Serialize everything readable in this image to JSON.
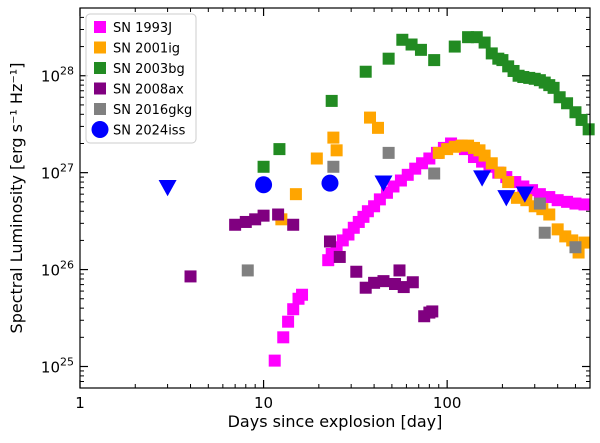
{
  "chart_data": {
    "type": "scatter",
    "title": "",
    "xlabel": "Days since explosion [day]",
    "ylabel": "Spectral Luminosity [erg s⁻¹ Hz⁻¹]",
    "xscale": "log",
    "yscale": "log",
    "xlim": [
      1,
      600
    ],
    "ylim": [
      6e+24,
      5e+28
    ],
    "x_ticks": [
      {
        "value": 1,
        "label": "1"
      },
      {
        "value": 10,
        "label": "10"
      },
      {
        "value": 100,
        "label": "100"
      }
    ],
    "y_ticks": [
      {
        "value": 1e+25,
        "label": "10^25"
      },
      {
        "value": 1e+26,
        "label": "10^26"
      },
      {
        "value": 1e+27,
        "label": "10^27"
      },
      {
        "value": 1e+28,
        "label": "10^28"
      }
    ],
    "legend_position": "top-left",
    "series": [
      {
        "name": "SN 1993J",
        "color": "#ff00ff",
        "marker": "square",
        "points": [
          [
            11.5,
            1.15e+25
          ],
          [
            12.8,
            2e+25
          ],
          [
            13.6,
            2.9e+25
          ],
          [
            14.5,
            3.9e+25
          ],
          [
            15.5,
            5e+25
          ],
          [
            16.2,
            5.5e+25
          ],
          [
            22.5,
            1.25e+26
          ],
          [
            23.5,
            1.45e+26
          ],
          [
            25,
            1.7e+26
          ],
          [
            27,
            2e+26
          ],
          [
            29,
            2.3e+26
          ],
          [
            31,
            2.7e+26
          ],
          [
            33,
            3.1e+26
          ],
          [
            35,
            3.5e+26
          ],
          [
            37,
            4e+26
          ],
          [
            40,
            4.5e+26
          ],
          [
            43,
            5.3e+26
          ],
          [
            47,
            6.2e+26
          ],
          [
            51,
            7.2e+26
          ],
          [
            56,
            8.3e+26
          ],
          [
            61,
            9.5e+26
          ],
          [
            67,
            1.1e+27
          ],
          [
            73,
            1.25e+27
          ],
          [
            80,
            1.4e+27
          ],
          [
            88,
            1.6e+27
          ],
          [
            96,
            1.8e+27
          ],
          [
            105,
            2e+27
          ],
          [
            115,
            1.9e+27
          ],
          [
            125,
            1.75e+27
          ],
          [
            140,
            1.45e+27
          ],
          [
            155,
            1.3e+27
          ],
          [
            170,
            1.15e+27
          ],
          [
            190,
            1e+27
          ],
          [
            210,
            9e+26
          ],
          [
            235,
            8e+26
          ],
          [
            260,
            7.2e+26
          ],
          [
            290,
            6.6e+26
          ],
          [
            320,
            6e+26
          ],
          [
            360,
            5.6e+26
          ],
          [
            400,
            5.2e+26
          ],
          [
            450,
            5e+26
          ],
          [
            500,
            4.8e+26
          ],
          [
            560,
            4.7e+26
          ]
        ]
      },
      {
        "name": "SN 2001ig",
        "color": "#ffa500",
        "marker": "square",
        "points": [
          [
            12.5,
            3.3e+26
          ],
          [
            15.0,
            6e+26
          ],
          [
            19.5,
            1.4e+27
          ],
          [
            24.0,
            2.3e+27
          ],
          [
            25.0,
            1.7e+27
          ],
          [
            38.0,
            3.7e+27
          ],
          [
            42.0,
            2.9e+27
          ],
          [
            90,
            1.6e+27
          ],
          [
            100,
            1.75e+27
          ],
          [
            110,
            1.85e+27
          ],
          [
            120,
            1.9e+27
          ],
          [
            130,
            1.9e+27
          ],
          [
            140,
            1.8e+27
          ],
          [
            150,
            1.7e+27
          ],
          [
            160,
            1.5e+27
          ],
          [
            175,
            1.25e+27
          ],
          [
            195,
            1e+27
          ],
          [
            215,
            8e+26
          ],
          [
            240,
            5.5e+26
          ],
          [
            270,
            5.2e+26
          ],
          [
            300,
            4.5e+26
          ],
          [
            330,
            4.2e+26
          ],
          [
            360,
            3.7e+26
          ],
          [
            400,
            2.6e+26
          ],
          [
            440,
            2.2e+26
          ],
          [
            480,
            2e+26
          ],
          [
            520,
            1.5e+26
          ],
          [
            560,
            1.9e+26
          ]
        ]
      },
      {
        "name": "SN 2003bg",
        "color": "#228b22",
        "marker": "square",
        "points": [
          [
            10,
            1.15e+27
          ],
          [
            12.2,
            1.75e+27
          ],
          [
            23.5,
            5.5e+27
          ],
          [
            36.0,
            1.1e+28
          ],
          [
            48.0,
            1.5e+28
          ],
          [
            57.0,
            2.35e+28
          ],
          [
            64.0,
            2.1e+28
          ],
          [
            72.0,
            1.85e+28
          ],
          [
            85.0,
            1.45e+28
          ],
          [
            110,
            2e+28
          ],
          [
            130,
            2.5e+28
          ],
          [
            145,
            2.5e+28
          ],
          [
            160,
            2.2e+28
          ],
          [
            175,
            1.7e+28
          ],
          [
            190,
            1.5e+28
          ],
          [
            200,
            1.45e+28
          ],
          [
            215,
            1.25e+28
          ],
          [
            230,
            1.12e+28
          ],
          [
            245,
            1e+28
          ],
          [
            260,
            9.7e+27
          ],
          [
            280,
            9.5e+27
          ],
          [
            300,
            9.3e+27
          ],
          [
            320,
            9e+27
          ],
          [
            340,
            8.5e+27
          ],
          [
            360,
            8e+27
          ],
          [
            380,
            7.5e+27
          ],
          [
            410,
            6e+27
          ],
          [
            450,
            5.2e+27
          ],
          [
            500,
            4.2e+27
          ],
          [
            540,
            3.5e+27
          ],
          [
            590,
            2.8e+27
          ]
        ]
      },
      {
        "name": "SN 2008ax",
        "color": "#800080",
        "marker": "square",
        "points": [
          [
            4.0,
            8.5e+25
          ],
          [
            7.0,
            2.9e+26
          ],
          [
            8.0,
            3.1e+26
          ],
          [
            9.0,
            3.3e+26
          ],
          [
            10.0,
            3.6e+26
          ],
          [
            12.0,
            3.7e+26
          ],
          [
            14.5,
            2.9e+26
          ],
          [
            23.0,
            1.95e+26
          ],
          [
            26.0,
            1.35e+26
          ],
          [
            32.0,
            9.5e+25
          ],
          [
            36.0,
            6.5e+25
          ],
          [
            40.0,
            7.3e+25
          ],
          [
            45.0,
            7.6e+25
          ],
          [
            52.0,
            7.1e+25
          ],
          [
            55.0,
            9.8e+25
          ],
          [
            58.0,
            6.6e+25
          ],
          [
            65.0,
            7.4e+25
          ],
          [
            75,
            3.3e+25
          ],
          [
            80,
            3.6e+25
          ],
          [
            83,
            3.7e+25
          ]
        ]
      },
      {
        "name": "SN 2016gkg",
        "color": "#808080",
        "marker": "square",
        "points": [
          [
            8.2,
            9.8e+25
          ],
          [
            24.0,
            1.15e+27
          ],
          [
            48.0,
            1.6e+27
          ],
          [
            85.0,
            9.8e+26
          ],
          [
            320,
            4.8e+26
          ],
          [
            340,
            2.4e+26
          ],
          [
            500,
            1.7e+26
          ]
        ]
      },
      {
        "name": "SN 2024iss",
        "color": "#0000ff",
        "marker": "circle",
        "points": [
          [
            10.0,
            7.5e+26
          ],
          [
            23.0,
            7.8e+26
          ]
        ],
        "upper_limits": [
          [
            3.0,
            7e+26
          ],
          [
            45.0,
            7.8e+26
          ],
          [
            155,
            8.8e+26
          ],
          [
            210,
            5.5e+26
          ],
          [
            265,
            6e+26
          ]
        ]
      }
    ]
  }
}
